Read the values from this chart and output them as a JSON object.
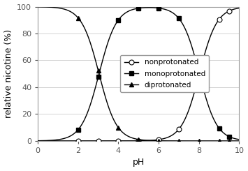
{
  "title": "",
  "xlabel": "pH",
  "ylabel": "relative nicotine (%)",
  "xlim": [
    0,
    10
  ],
  "ylim": [
    0,
    100
  ],
  "xticks": [
    0,
    2,
    4,
    6,
    8,
    10
  ],
  "yticks": [
    0,
    20,
    40,
    60,
    80,
    100
  ],
  "grid_color": "#cccccc",
  "line_color": "#000000",
  "bg_color": "#ffffff",
  "legend_labels": [
    "nonprotonated",
    "monoprotonated",
    "diprotonated"
  ],
  "pKa1": 3.04,
  "pKa2": 8.02,
  "marker_size": 5,
  "line_width": 1.0,
  "legend_fontsize": 7.5,
  "axis_fontsize": 9,
  "tick_fontsize": 8,
  "pH_points": [
    2,
    3,
    4,
    5,
    6,
    7,
    8,
    9,
    9.5
  ]
}
